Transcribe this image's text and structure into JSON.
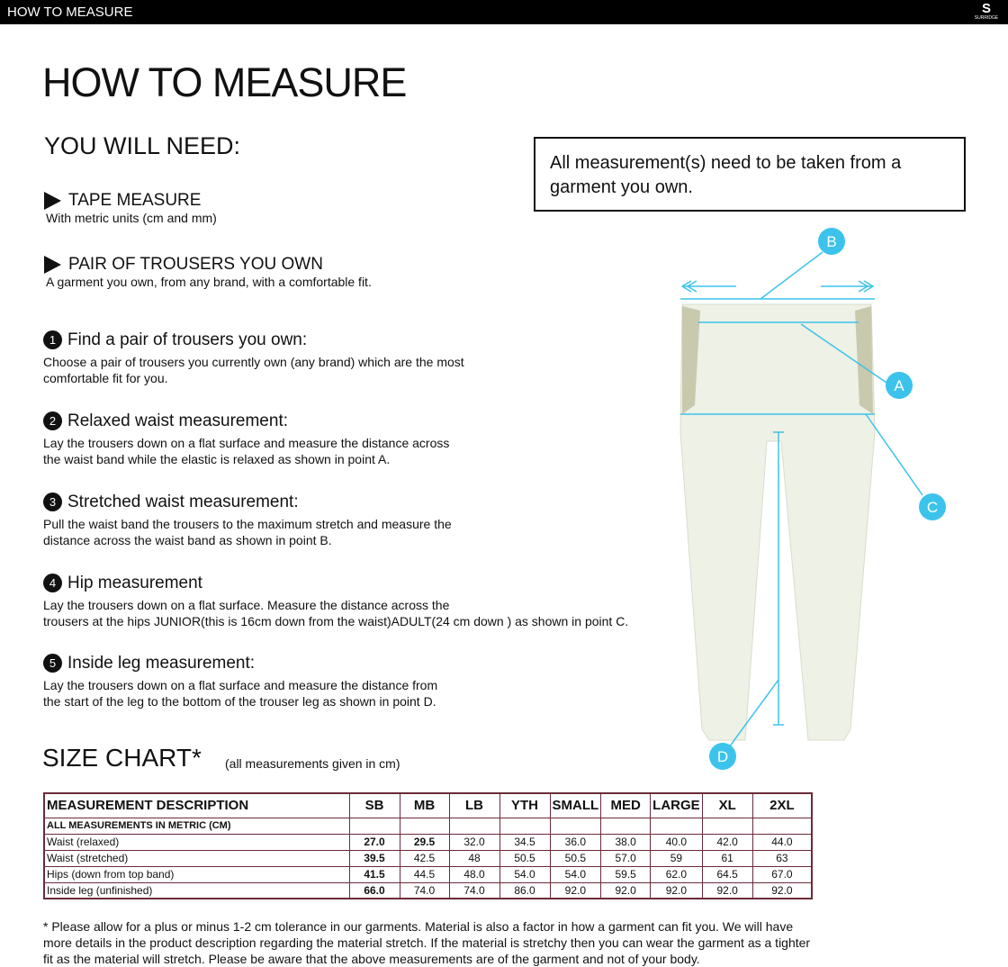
{
  "topbar": {
    "title": "HOW TO MEASURE",
    "logo_text": "SURRIDGE"
  },
  "page_title": "HOW TO MEASURE",
  "you_will_need": {
    "heading": "YOU WILL NEED:",
    "items": [
      {
        "title": "TAPE MEASURE",
        "desc": "With metric units (cm and mm)"
      },
      {
        "title": "PAIR OF TROUSERS YOU OWN",
        "desc": "A garment you own, from any brand, with a comfortable fit."
      }
    ]
  },
  "notice": "All measurement(s) need to be taken from a garment you own.",
  "steps": [
    {
      "num": "1",
      "title": "Find a pair of trousers you own:",
      "lines": [
        "Choose a pair of trousers you currently own (any brand) which are the most",
        "comfortable fit for you."
      ]
    },
    {
      "num": "2",
      "title": "Relaxed waist measurement:",
      "lines": [
        "Lay the trousers down on a flat surface and measure the distance across",
        "the waist band while the elastic is relaxed as shown in point A."
      ]
    },
    {
      "num": "3",
      "title": "Stretched waist measurement:",
      "lines": [
        "Pull the waist band the trousers to the maximum stretch and measure the",
        "distance across the waist band as shown in point B."
      ]
    },
    {
      "num": "4",
      "title": "Hip measurement",
      "lines": [
        "Lay the trousers down on a flat surface. Measure the distance across the",
        "trousers at the hips JUNIOR(this is 16cm down from the waist)ADULT(24 cm down ) as shown in point C."
      ]
    },
    {
      "num": "5",
      "title": "Inside leg measurement:",
      "lines": [
        "Lay the trousers down on a flat surface and measure the distance from",
        "the start of the leg to the bottom of the trouser leg as shown in point D."
      ]
    }
  ],
  "diagram": {
    "labels": [
      "A",
      "B",
      "C",
      "D"
    ],
    "accent": "#3cc3ec"
  },
  "size_chart": {
    "title": "SIZE CHART*",
    "units_note": "(all measurements given in cm)",
    "headers": [
      "MEASUREMENT DESCRIPTION",
      "SB",
      "MB",
      "LB",
      "YTH",
      "SMALL",
      "MED",
      "LARGE",
      "XL",
      "2XL"
    ],
    "subheader": "ALL MEASUREMENTS IN METRIC (CM)",
    "rows": [
      {
        "label": "Waist (relaxed)",
        "values": [
          "27.0",
          "29.5",
          "32.0",
          "34.5",
          "36.0",
          "38.0",
          "40.0",
          "42.0",
          "44.0"
        ]
      },
      {
        "label": "Waist (stretched)",
        "values": [
          "39.5",
          "42.5",
          "48",
          "50.5",
          "50.5",
          "57.0",
          "59",
          "61",
          "63"
        ]
      },
      {
        "label": "Hips (down from top band)",
        "values": [
          "41.5",
          "44.5",
          "48.0",
          "54.0",
          "54.0",
          "59.5",
          "62.0",
          "64.5",
          "67.0"
        ]
      },
      {
        "label": "Inside leg (unfinished)",
        "values": [
          "66.0",
          "74.0",
          "74.0",
          "86.0",
          "92.0",
          "92.0",
          "92.0",
          "92.0",
          "92.0"
        ]
      }
    ]
  },
  "footnote": "* Please allow for a plus or minus 1-2 cm tolerance in our garments. Material is also a factor in how a garment can fit you. We will have more details in the product description regarding the material stretch.  If the material is stretchy then you can wear the garment as a tighter fit as the material will stretch.  Please be aware that the above measurements are of the garment and not of your body."
}
